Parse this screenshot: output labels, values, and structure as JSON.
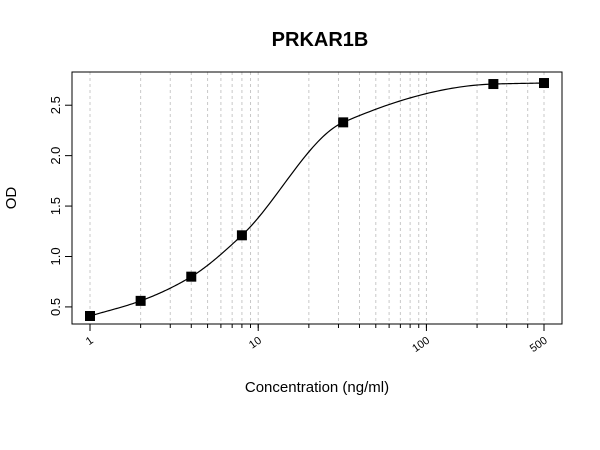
{
  "chart_data": {
    "type": "scatter",
    "title": "PRKAR1B",
    "xlabel": "Concentration (ng/ml)",
    "ylabel": "OD",
    "x_scale": "log",
    "xlim": [
      1,
      500
    ],
    "ylim": [
      0.4,
      2.75
    ],
    "x_ticks": [
      1,
      10,
      100,
      500
    ],
    "x_tick_labels": [
      "1",
      "10",
      "100",
      "500"
    ],
    "y_ticks": [
      0.5,
      1.0,
      1.5,
      2.0,
      2.5
    ],
    "y_tick_labels": [
      "0.5",
      "1.0",
      "1.5",
      "2.0",
      "2.5"
    ],
    "grid": "vertical dashed at log-decade minor ticks",
    "points": {
      "x": [
        1,
        2,
        4,
        8,
        32,
        250,
        500
      ],
      "y": [
        0.41,
        0.56,
        0.8,
        1.21,
        2.33,
        2.71,
        2.72
      ]
    },
    "fit_curve": true
  }
}
